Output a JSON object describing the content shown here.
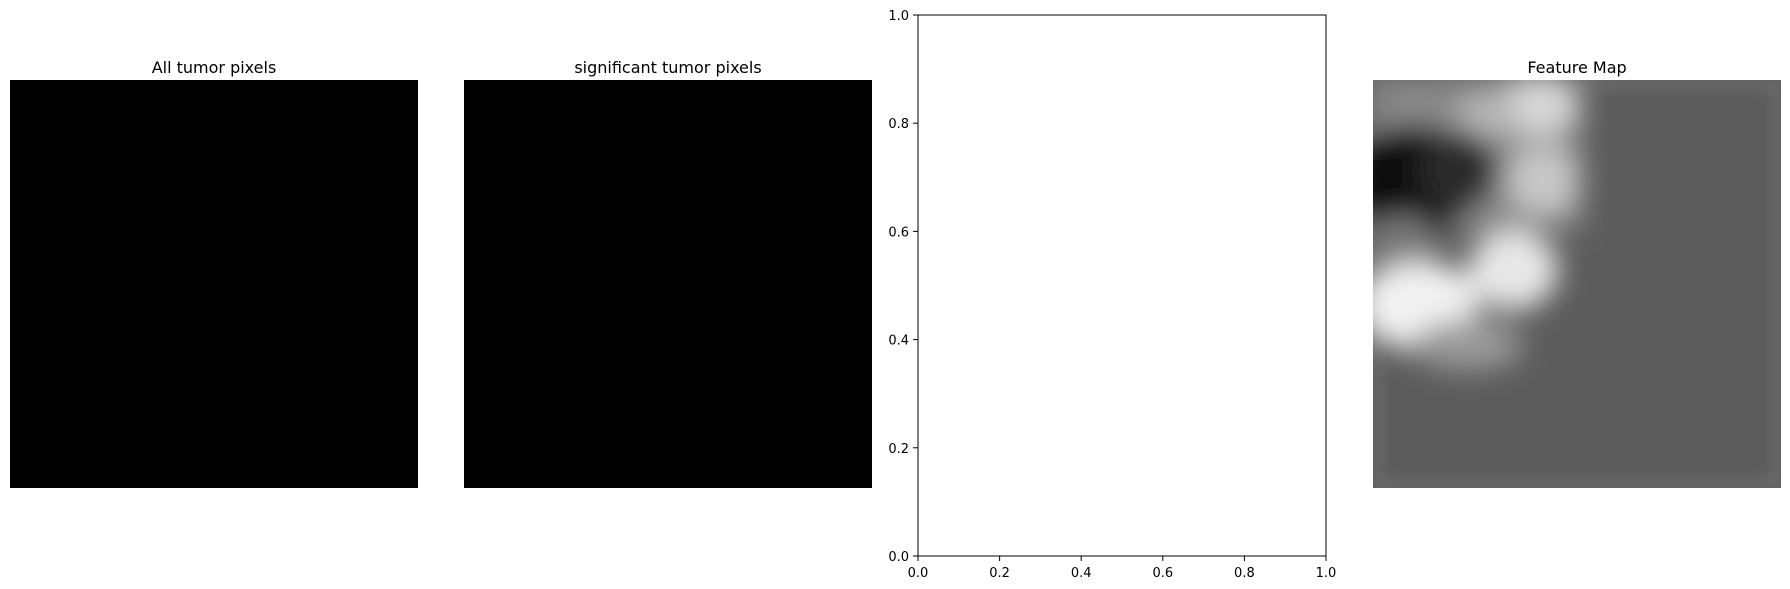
{
  "chart_data": [
    {
      "type": "heatmap",
      "title": "All tumor pixels",
      "colormap": "gray",
      "description_values": "uniform 0"
    },
    {
      "type": "heatmap",
      "title": "significant tumor pixels",
      "colormap": "gray",
      "description_values": "uniform 0"
    },
    {
      "type": "scatter",
      "title": "",
      "xlabel": "",
      "ylabel": "",
      "xlim": [
        0.0,
        1.0
      ],
      "ylim": [
        0.0,
        1.0
      ],
      "xticks": [
        "0.0",
        "0.2",
        "0.4",
        "0.6",
        "0.8",
        "1.0"
      ],
      "yticks": [
        "0.0",
        "0.2",
        "0.4",
        "0.6",
        "0.8",
        "1.0"
      ],
      "series": []
    },
    {
      "type": "heatmap",
      "title": "Feature Map",
      "colormap": "gray"
    }
  ],
  "colors": {
    "black": "#000000",
    "background_gray": "#5c5c5c",
    "white": "#ffffff"
  }
}
